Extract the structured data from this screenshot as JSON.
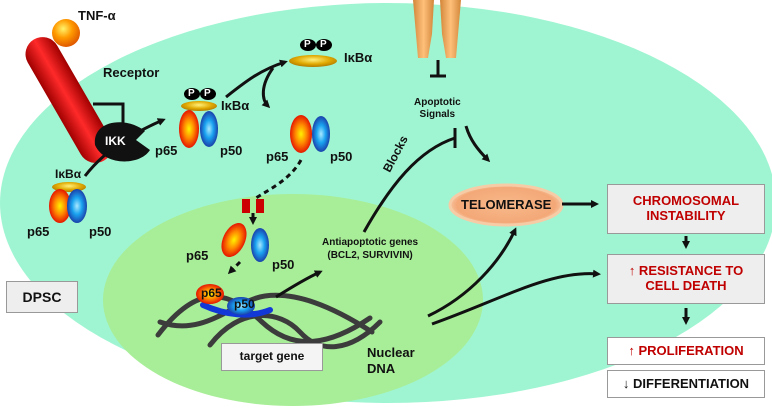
{
  "colors": {
    "cell": "#9ff5d2",
    "nucleus": "#a8ee98",
    "telomerase": "#f7b98a",
    "text_red": "#c00000",
    "receptor": "#e00000",
    "channel": "#f4a460"
  },
  "ligand": {
    "label": "TNF-α"
  },
  "receptor": {
    "label": "Receptor"
  },
  "kinase": {
    "label": "IKK"
  },
  "complex_left": {
    "inhibitor": "IκBα",
    "p65": "p65",
    "p50": "p50"
  },
  "complex_phospho": {
    "p1": "P",
    "p2": "P",
    "inhibitor": "IκBα",
    "p65": "p65",
    "p50": "p50"
  },
  "released_inhibitor": {
    "p1": "P",
    "p2": "P",
    "label": "IκBα"
  },
  "free_dimer": {
    "p65": "p65",
    "p50": "p50"
  },
  "nuclear_dimer": {
    "p65": "p65",
    "p50": "p50"
  },
  "bound_dimer": {
    "p65": "p65",
    "p50": "p50"
  },
  "apoptotic": {
    "line1": "Apoptotic",
    "line2": "Signals"
  },
  "blocks": {
    "label": "Blocks"
  },
  "antiapoptotic": {
    "line1": "Antiapoptotic genes",
    "line2": "(BCL2, SURVIVIN)"
  },
  "telomerase": {
    "label": "TELOMERASE"
  },
  "outcomes": {
    "chromosomal_line1": "CHROMOSOMAL",
    "chromosomal_line2": "INSTABILITY",
    "resistance_line1": "↑ RESISTANCE TO",
    "resistance_line2": "CELL DEATH",
    "proliferation": "↑ PROLIFERATION",
    "differentiation": "↓ DIFFERENTIATION"
  },
  "cell_label": "DPSC",
  "target_gene": "target gene",
  "dna": {
    "line1": "Nuclear",
    "line2": "DNA"
  }
}
